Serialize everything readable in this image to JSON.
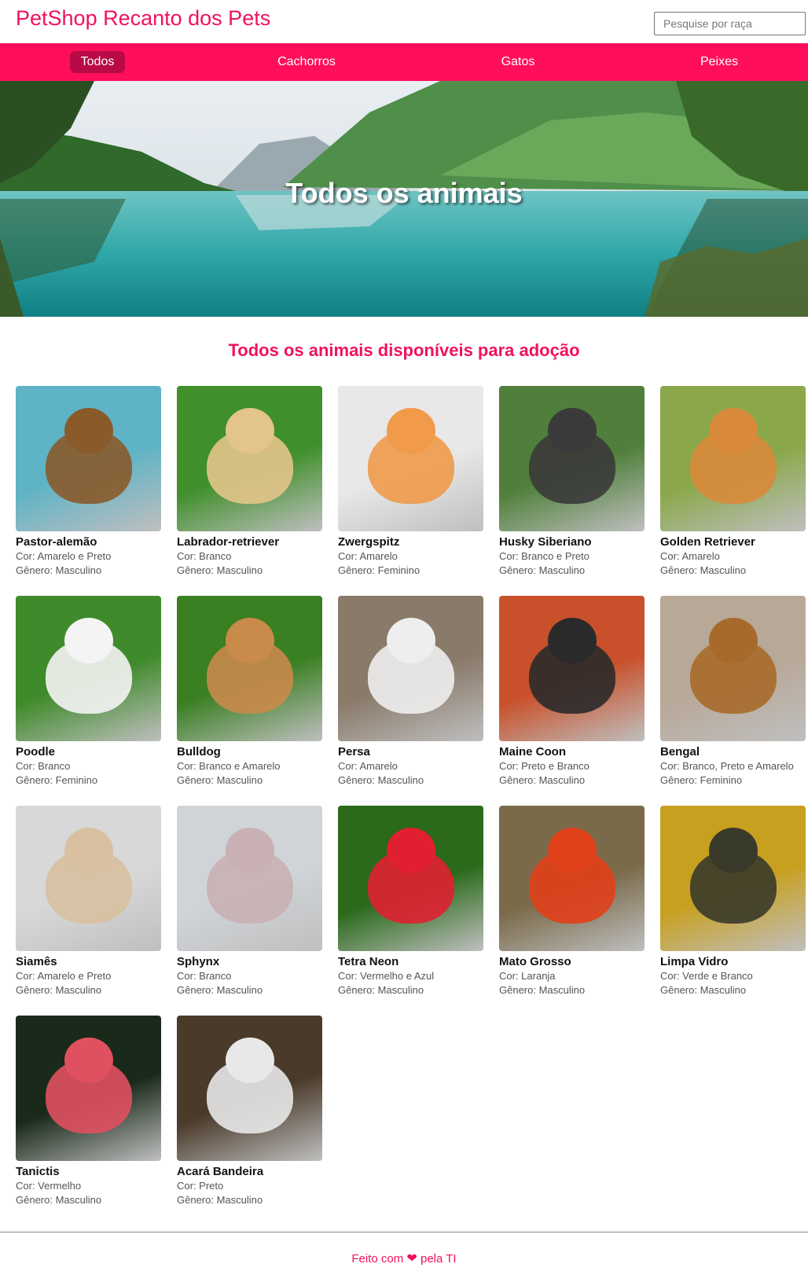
{
  "header": {
    "brand": "PetShop Recanto dos Pets",
    "search_placeholder": "Pesquise por raça"
  },
  "nav": {
    "items": [
      {
        "label": "Todos",
        "active": true
      },
      {
        "label": "Cachorros",
        "active": false
      },
      {
        "label": "Gatos",
        "active": false
      },
      {
        "label": "Peixes",
        "active": false
      }
    ]
  },
  "hero": {
    "title": "Todos os animais"
  },
  "section": {
    "title": "Todos os animais disponíveis para adoção"
  },
  "animals": [
    {
      "name": "Pastor-alemão",
      "color": "Cor: Amarelo e Preto",
      "gender": "Gênero: Masculino",
      "bg": "#5fb3c6",
      "fg": "#8a5a2b"
    },
    {
      "name": "Labrador-retriever",
      "color": "Cor: Branco",
      "gender": "Gênero: Masculino",
      "bg": "#3f8f2a",
      "fg": "#e3c48a"
    },
    {
      "name": "Zwergspitz",
      "color": "Cor: Amarelo",
      "gender": "Gênero: Feminino",
      "bg": "#e8e8e8",
      "fg": "#f09a4a"
    },
    {
      "name": "Husky Siberiano",
      "color": "Cor: Branco e Preto",
      "gender": "Gênero: Masculino",
      "bg": "#4f7f3a",
      "fg": "#3a3a3a"
    },
    {
      "name": "Golden Retriever",
      "color": "Cor: Amarelo",
      "gender": "Gênero: Masculino",
      "bg": "#8aa84a",
      "fg": "#d88a3a"
    },
    {
      "name": "Poodle",
      "color": "Cor: Branco",
      "gender": "Gênero: Feminino",
      "bg": "#3f8a2a",
      "fg": "#f4f4f4"
    },
    {
      "name": "Bulldog",
      "color": "Cor: Branco e Amarelo",
      "gender": "Gênero: Masculino",
      "bg": "#3a7f22",
      "fg": "#c98a4a"
    },
    {
      "name": "Persa",
      "color": "Cor: Amarelo",
      "gender": "Gênero: Masculino",
      "bg": "#8a7a6a",
      "fg": "#eeeeee"
    },
    {
      "name": "Maine Coon",
      "color": "Cor: Preto e Branco",
      "gender": "Gênero: Masculino",
      "bg": "#c8502a",
      "fg": "#2a2a2a"
    },
    {
      "name": "Bengal",
      "color": "Cor: Branco, Preto e Amarelo",
      "gender": "Gênero: Feminino",
      "bg": "#b8a898",
      "fg": "#a86a2a"
    },
    {
      "name": "Siamês",
      "color": "Cor: Amarelo e Preto",
      "gender": "Gênero: Masculino",
      "bg": "#d8d8d8",
      "fg": "#d8c0a0"
    },
    {
      "name": "Sphynx",
      "color": "Cor: Branco",
      "gender": "Gênero: Masculino",
      "bg": "#d0d4d8",
      "fg": "#c8b0b4"
    },
    {
      "name": "Tetra Neon",
      "color": "Cor: Vermelho e Azul",
      "gender": "Gênero: Masculino",
      "bg": "#2a6a1a",
      "fg": "#e02030"
    },
    {
      "name": "Mato Grosso",
      "color": "Cor: Laranja",
      "gender": "Gênero: Masculino",
      "bg": "#7a6a4a",
      "fg": "#e0401a"
    },
    {
      "name": "Limpa Vidro",
      "color": "Cor: Verde e Branco",
      "gender": "Gênero: Masculino",
      "bg": "#c8a020",
      "fg": "#3a3a2a"
    },
    {
      "name": "Tanictis",
      "color": "Cor: Vermelho",
      "gender": "Gênero: Masculino",
      "bg": "#1a2a1a",
      "fg": "#e05060"
    },
    {
      "name": "Acará Bandeira",
      "color": "Cor: Preto",
      "gender": "Gênero: Masculino",
      "bg": "#4a3a2a",
      "fg": "#e8e8e8"
    }
  ],
  "footer": {
    "before": "Feito com",
    "after": "pela TI"
  }
}
